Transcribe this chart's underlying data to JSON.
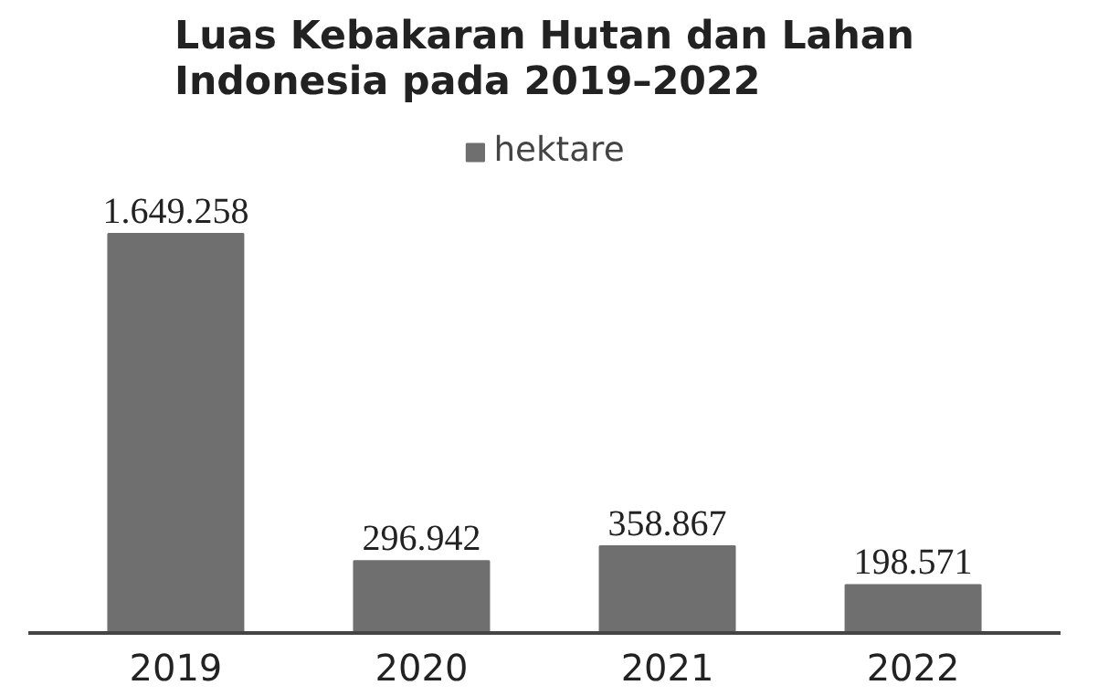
{
  "chart_data": {
    "type": "bar",
    "title": "Luas Kebakaran Hutan dan Lahan\nIndonesia pada 2019–2022",
    "categories": [
      "2019",
      "2020",
      "2021",
      "2022"
    ],
    "series": [
      {
        "name": "hektare",
        "color": "#6f6f6f",
        "values": [
          1649258,
          296942,
          358867,
          198571
        ],
        "value_labels": [
          "1.649.258",
          "296.942",
          "358.867",
          "198.571"
        ]
      }
    ],
    "legend": "top",
    "grid": false
  }
}
